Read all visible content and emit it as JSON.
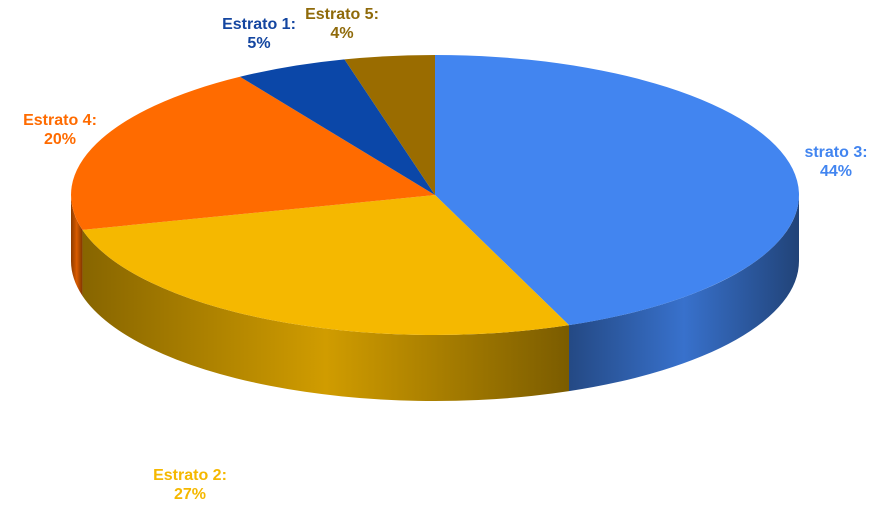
{
  "chart_data": {
    "type": "pie",
    "style": "3d",
    "start_angle_deg": 0,
    "direction": "clockwise",
    "slices": [
      {
        "label": "strato 3:",
        "percent": 44,
        "value_text": "44%",
        "color": "#4285f0",
        "label_color": "#4285f0"
      },
      {
        "label": "Estrato 2:",
        "percent": 27,
        "value_text": "27%",
        "color": "#f5b800",
        "label_color": "#f5b800"
      },
      {
        "label": "Estrato 4:",
        "percent": 20,
        "value_text": "20%",
        "color": "#ff6b00",
        "label_color": "#ff6b00"
      },
      {
        "label": "Estrato 1:",
        "percent": 5,
        "value_text": "5%",
        "color": "#0b47a8",
        "label_color": "#1446a0"
      },
      {
        "label": "Estrato 5:",
        "percent": 4,
        "value_text": "4%",
        "color": "#9a6c00",
        "label_color": "#8f6a0a"
      }
    ]
  }
}
